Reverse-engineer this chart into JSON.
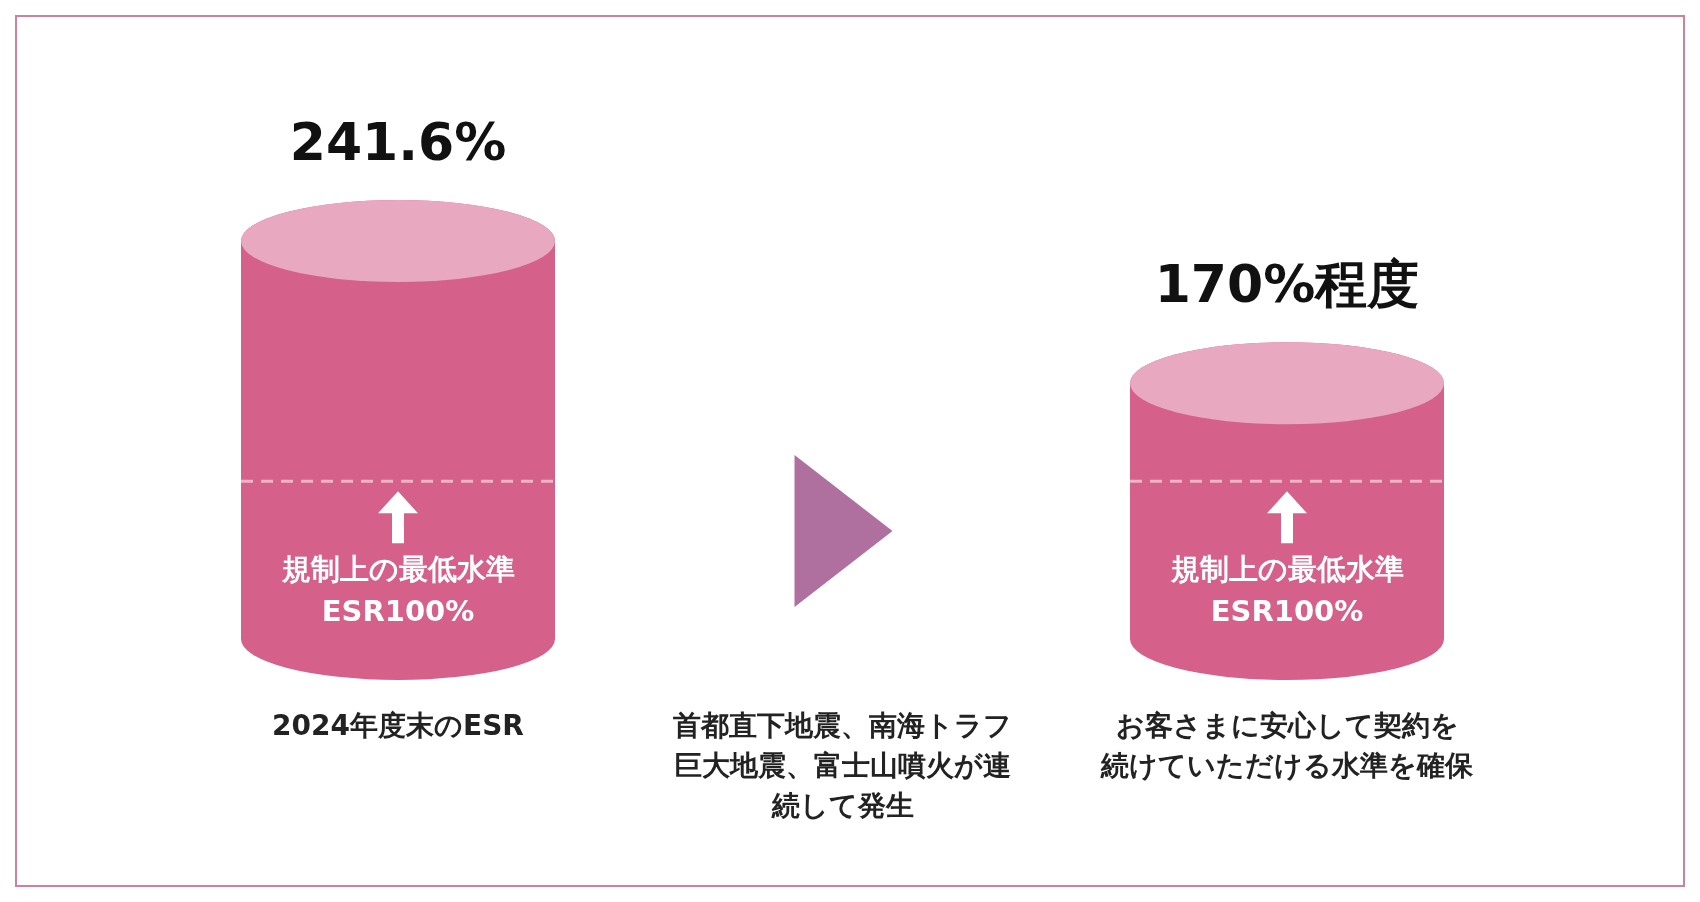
{
  "chart_data": {
    "type": "bar",
    "categories": [
      "2024年度末のESR",
      "お客さまに安心して契約を続けていただける水準を確保"
    ],
    "values": [
      241.6,
      170
    ],
    "color": "#d5608a",
    "value_labels": [
      "241.6%",
      "170%程度"
    ],
    "ref_lines": [
      {
        "axis": "y",
        "value": 100,
        "label": "規制上の最低水準\nESR100%",
        "line_style": "dashed",
        "color": "#eeb4c6"
      }
    ],
    "annotations": [
      "首都直下地震、南海トラフ巨大地震、富士山噴火が連続して発生"
    ]
  }
}
